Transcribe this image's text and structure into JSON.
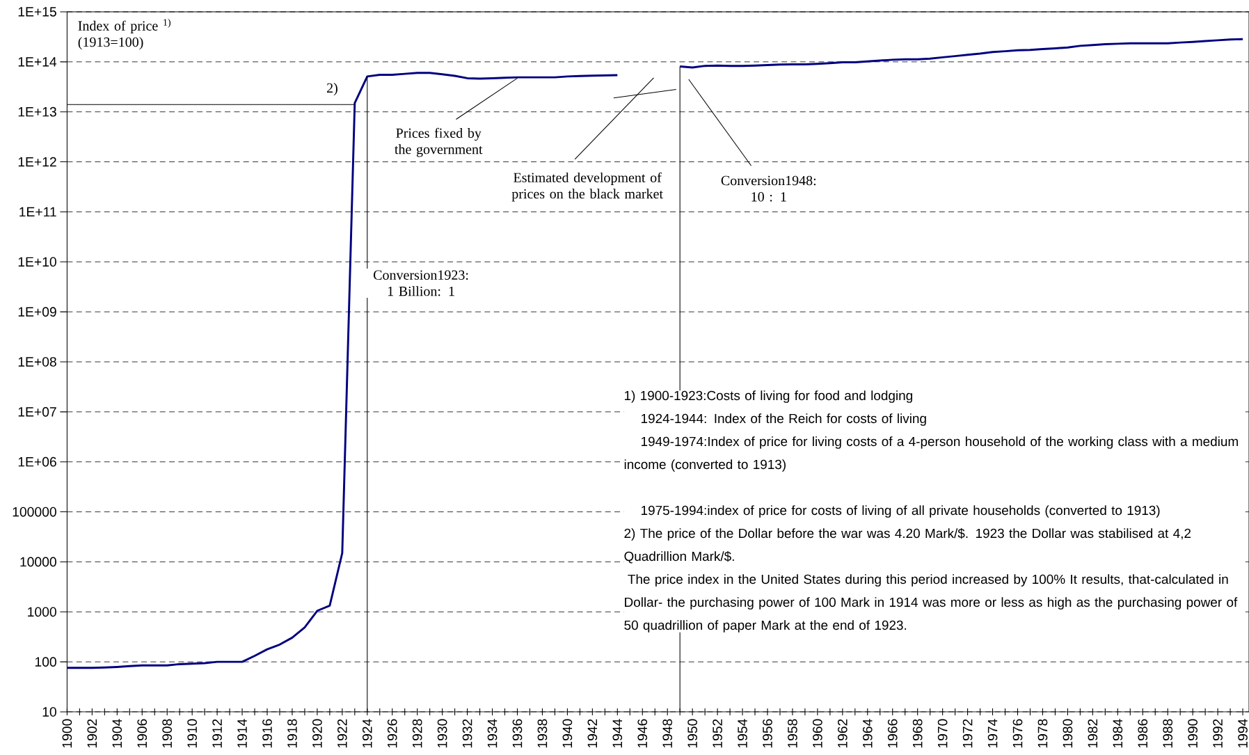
{
  "chart_data": {
    "type": "line",
    "ylabel": "Index of price $^{1)}$ (1913=100)",
    "x": [
      1900,
      1901,
      1902,
      1903,
      1904,
      1905,
      1906,
      1907,
      1908,
      1909,
      1910,
      1911,
      1912,
      1913,
      1914,
      1915,
      1916,
      1917,
      1918,
      1919,
      1920,
      1921,
      1922,
      1923,
      1924,
      1925,
      1926,
      1927,
      1928,
      1929,
      1930,
      1931,
      1932,
      1933,
      1934,
      1935,
      1936,
      1937,
      1938,
      1939,
      1940,
      1941,
      1942,
      1943,
      1944,
      1945,
      1946,
      1947,
      1948,
      1949,
      1950,
      1951,
      1952,
      1953,
      1954,
      1955,
      1956,
      1957,
      1958,
      1959,
      1960,
      1961,
      1962,
      1963,
      1964,
      1965,
      1966,
      1967,
      1968,
      1969,
      1970,
      1971,
      1972,
      1973,
      1974,
      1975,
      1976,
      1977,
      1978,
      1979,
      1980,
      1981,
      1982,
      1983,
      1984,
      1985,
      1986,
      1987,
      1988,
      1989,
      1990,
      1991,
      1992,
      1993,
      1994
    ],
    "series": [
      {
        "color": "#000080",
        "values": [
          76,
          76,
          76,
          77,
          79,
          82,
          85,
          85,
          85,
          90,
          92,
          94,
          100,
          100,
          100,
          132,
          178,
          222,
          305,
          490,
          1050,
          1330,
          15000,
          15000000000000.0,
          51000000000000.0,
          55000000000000.0,
          55000000000000.0,
          57500000000000.0,
          60000000000000.0,
          60000000000000.0,
          56500000000000.0,
          52500000000000.0,
          47000000000000.0,
          46000000000000.0,
          47000000000000.0,
          48000000000000.0,
          49000000000000.0,
          49000000000000.0,
          49000000000000.0,
          49000000000000.0,
          51000000000000.0,
          52000000000000.0,
          53000000000000.0,
          53500000000000.0,
          54000000000000.0,
          null,
          null,
          null,
          null,
          81000000000000.0,
          77000000000000.0,
          83000000000000.0,
          84000000000000.0,
          83000000000000.0,
          83000000000000.0,
          84000000000000.0,
          86000000000000.0,
          88000000000000.0,
          89000000000000.0,
          89000000000000.0,
          91000000000000.0,
          94000000000000.0,
          98000000000000.0,
          98000000000000.0,
          102000000000000.0,
          106000000000000.0,
          110000000000000.0,
          112000000000000.0,
          112000000000000.0,
          116000000000000.0,
          123000000000000.0,
          130000000000000.0,
          138000000000000.0,
          146000000000000.0,
          157000000000000.0,
          163000000000000.0,
          170000000000000.0,
          173000000000000.0,
          180000000000000.0,
          186000000000000.0,
          194000000000000.0,
          209000000000000.0,
          217000000000000.0,
          225000000000000.0,
          230000000000000.0,
          234000000000000.0,
          234000000000000.0,
          234000000000000.0,
          234000000000000.0,
          243000000000000.0,
          250000000000000.0,
          260000000000000.0,
          270000000000000.0,
          280000000000000.0,
          285000000000000.0
        ]
      },
      {
        "color": "#000000",
        "x": [
          1943.7,
          1948.7
        ],
        "values": [
          19000000000000.0,
          28000000000000.0
        ]
      }
    ],
    "xlim": [
      1900,
      1994.5
    ],
    "ylim": [
      10,
      1000000000000000.0
    ],
    "xticks": [
      1900,
      {
        "value": 1901,
        "label": null
      },
      1902,
      {
        "value": 1903,
        "label": null
      },
      1904,
      {
        "value": 1905,
        "label": null
      },
      1906,
      {
        "value": 1907,
        "label": null
      },
      1908,
      {
        "value": 1909,
        "label": null
      },
      1910,
      {
        "value": 1911,
        "label": null
      },
      1912,
      {
        "value": 1913,
        "label": null
      },
      1914,
      {
        "value": 1915,
        "label": null
      },
      1916,
      {
        "value": 1917,
        "label": null
      },
      1918,
      {
        "value": 1919,
        "label": null
      },
      1920,
      {
        "value": 1921,
        "label": null
      },
      1922,
      {
        "value": 1923,
        "label": null
      },
      1924,
      {
        "value": 1925,
        "label": null
      },
      1926,
      {
        "value": 1927,
        "label": null
      },
      1928,
      {
        "value": 1929,
        "label": null
      },
      1930,
      {
        "value": 1931,
        "label": null
      },
      1932,
      {
        "value": 1933,
        "label": null
      },
      1934,
      {
        "value": 1935,
        "label": null
      },
      1936,
      {
        "value": 1937,
        "label": null
      },
      1938,
      {
        "value": 1939,
        "label": null
      },
      1940,
      {
        "value": 1941,
        "label": null
      },
      1942,
      {
        "value": 1943,
        "label": null
      },
      1944,
      {
        "value": 1945,
        "label": null
      },
      1946,
      {
        "value": 1947,
        "label": null
      },
      1948,
      {
        "value": 1949,
        "label": null
      },
      1950,
      {
        "value": 1951,
        "label": null
      },
      1952,
      {
        "value": 1953,
        "label": null
      },
      1954,
      {
        "value": 1955,
        "label": null
      },
      1956,
      {
        "value": 1957,
        "label": null
      },
      1958,
      {
        "value": 1959,
        "label": null
      },
      1960,
      {
        "value": 1961,
        "label": null
      },
      1962,
      {
        "value": 1963,
        "label": null
      },
      1964,
      {
        "value": 1965,
        "label": null
      },
      1966,
      {
        "value": 1967,
        "label": null
      },
      1968,
      {
        "value": 1969,
        "label": null
      },
      1970,
      {
        "value": 1971,
        "label": null
      },
      1972,
      {
        "value": 1973,
        "label": null
      },
      1974,
      {
        "value": 1975,
        "label": null
      },
      1976,
      {
        "value": 1977,
        "label": null
      },
      1978,
      {
        "value": 1979,
        "label": null
      },
      1980,
      {
        "value": 1981,
        "label": null
      },
      1982,
      {
        "value": 1983,
        "label": null
      },
      1984,
      {
        "value": 1985,
        "label": null
      },
      1986,
      {
        "value": 1987,
        "label": null
      },
      1988,
      {
        "value": 1989,
        "label": null
      },
      1990,
      {
        "value": 1991,
        "label": null
      },
      1992,
      {
        "value": 1993,
        "label": null
      },
      1994
    ],
    "yticks": [
      10,
      100,
      1000,
      10000,
      100000,
      {
        "value": 1000000.0,
        "label": "1E+06"
      },
      {
        "value": 10000000.0,
        "label": "1E+07"
      },
      {
        "value": 100000000.0,
        "label": "1E+08"
      },
      {
        "value": 1000000000.0,
        "label": "1E+09"
      },
      {
        "value": 10000000000.0,
        "label": "1E+10"
      },
      {
        "value": 100000000000.0,
        "label": "1E+11"
      },
      {
        "value": 1000000000000.0,
        "label": "1E+12"
      },
      {
        "value": 10000000000000.0,
        "label": "1E+13"
      },
      {
        "value": 100000000000000.0,
        "label": "1E+14"
      },
      {
        "value": 1000000000000000.0,
        "label": "1E+15"
      }
    ],
    "log": "y",
    "grid": "y",
    "ref_lines": [
      {
        "axis": "y",
        "value": 14000000000000.0
      },
      {
        "axis": "x",
        "value": 1924
      },
      {
        "axis": "x",
        "value": 1949
      }
    ],
    "annotations": [
      {
        "text": "Prices fixed by the government",
        "x": 1936,
        "y": 47000000000000.0
      },
      "Estimated development of prices on the black market",
      "Conversion1923: 1 Billion: 1",
      "Conversion1948: 10 : 1",
      "2)",
      "1) 1900-1923:Costs of living for food and lodging",
      "1924-1944: Index of the Reich for costs of living",
      "1949-1974:Index of price for living costs of a 4-person household of the working class with a medium income (converted to 1913)",
      "1975-1994:index of price for costs of living of all private households (converted to 1913)",
      "2) The price of the Dollar before the war was 4.20 Mark/$. 1923 the Dollar was stabilised at 4,2 Quadrillion Mark/$.",
      "The price index in the United States during this period increased by 100% It results, that-calculated in Dollar- the purchasing power of 100 Mark in 1914 was more or less as high as the purchasing power of 50 quadrillion of paper Mark at the end of 1923."
    ]
  }
}
